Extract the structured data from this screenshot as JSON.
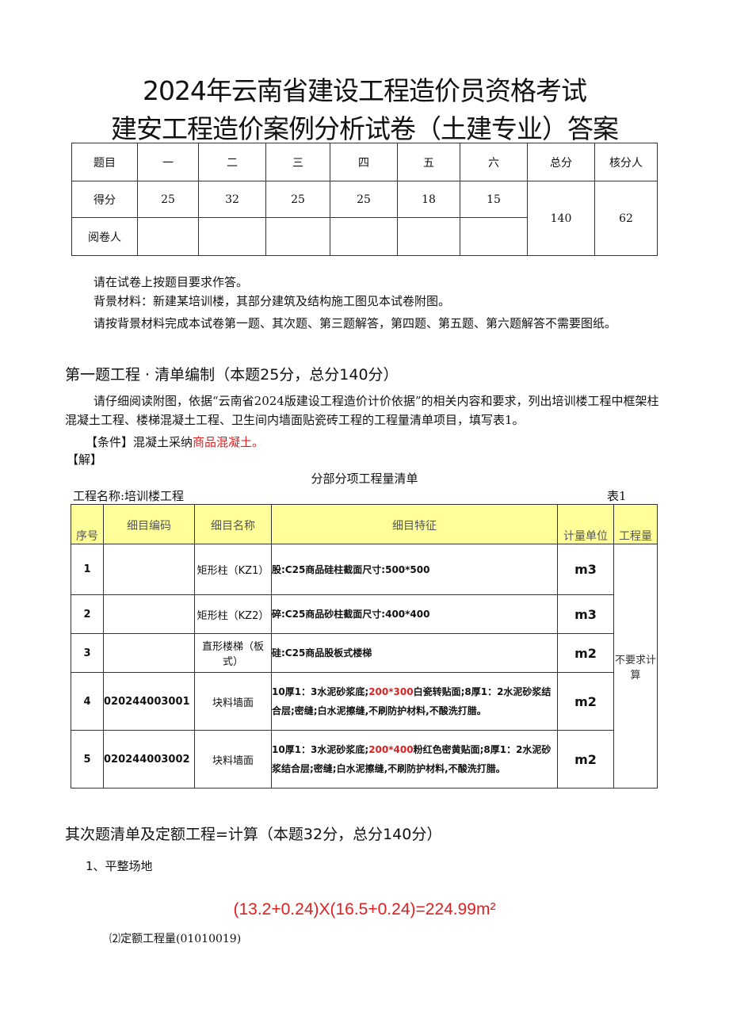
{
  "title_line1": "2024年云南省建设工程造价员资格考试",
  "title_line2": "建安工程造价案例分析试卷（土建专业）答案",
  "score_table": {
    "header": [
      "题目",
      "一",
      "二",
      "三",
      "四",
      "五",
      "六",
      "总分",
      "核分人"
    ],
    "score_label": "得分",
    "scores": [
      "25",
      "32",
      "25",
      "25",
      "18",
      "15"
    ],
    "total": "140",
    "checker": "62",
    "reviewer_label": "阅卷人"
  },
  "intro": [
    "请在试卷上按题目要求作答。",
    "背景材料：新建某培训楼，其部分建筑及结构施工图见本试卷附图。",
    "请按背景材料完成本试卷第一题、其次题、第三题解答，第四题、第五题、第六题解答不需要图纸。"
  ],
  "q1": {
    "heading": "第一题工程 · 清单编制（本题25分，总分140分）",
    "text": "请仔细阅读附图，依据“云南省2024版建设工程造价计价依据”的相关内容和要求，列出培训楼工程中框架柱混凝土工程、楼梯混凝土工程、卫生间内墙面贴瓷砖工程的工程量清单项目，填写表1。",
    "condition_prefix": "【条件】混凝土采纳",
    "condition_red": "商品混凝土。",
    "solution": "【解】",
    "table_title": "分部分项工程量清单",
    "project_name": "工程名称:培训楼工程",
    "table_no": "表1"
  },
  "bill_table": {
    "headers": [
      "序号",
      "细目编码",
      "细目名称",
      "细目特征",
      "计量单位",
      "工程量"
    ],
    "quantity_note": "不要求计算",
    "rows": [
      {
        "no": "1",
        "code": "",
        "name": "矩形柱（KZ1）",
        "feat_a": "股:C25商品硅柱截面尺寸:500*500",
        "feat_red": "",
        "feat_b": "",
        "unit": "m3"
      },
      {
        "no": "2",
        "code": "",
        "name": "矩形柱（KZ2）",
        "feat_a": "碎:C25商品砂柱截面尺寸:400*400",
        "feat_red": "",
        "feat_b": "",
        "unit": "m3"
      },
      {
        "no": "3",
        "code": "",
        "name": "直形楼梯（板式）",
        "feat_a": "硅:C25商品股板式楼梯",
        "feat_red": "",
        "feat_b": "",
        "unit": "m2"
      },
      {
        "no": "4",
        "code": "020244003001",
        "name": "块料墙面",
        "feat_a": "10厚1：3水泥砂浆底;",
        "feat_red": "200*300",
        "feat_b": "白瓷转贴面;8厚1：2水泥砂浆结合层;密缝;白水泥擦缝,不刷防护材料,不酸洗打腊。",
        "unit": "m2"
      },
      {
        "no": "5",
        "code": "020244003002",
        "name": "块料墙面",
        "feat_a": "10厚1：3水泥砂浆底;",
        "feat_red": "200*400",
        "feat_b": "粉红色密黄贴面;8厚1：2水泥砂浆结合层;密缝;白水泥擦缝,不刷防护材料,不酸洗打腊。",
        "unit": "m2"
      }
    ]
  },
  "q2": {
    "heading": "其次题清单及定额工程=计算（本题32分，总分140分）",
    "item1": "1、平整场地",
    "formula": "(13.2+0.24)X(16.5+0.24)=224.99m²",
    "sub2": "⑵定额工程量(01010019)"
  },
  "colors": {
    "red": "#e02020",
    "header_bg": "#ffff99"
  }
}
